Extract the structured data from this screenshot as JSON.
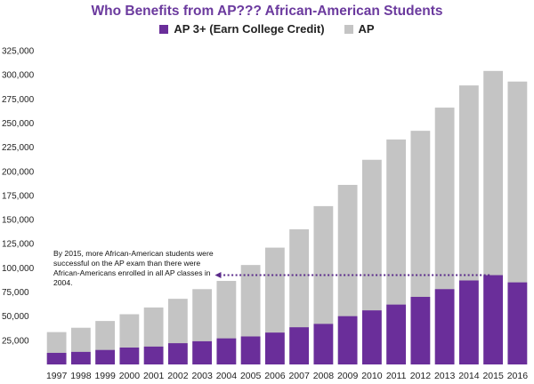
{
  "chart_data": {
    "type": "bar",
    "title": "Who Benefits from AP??? African-American Students",
    "categories": [
      "1997",
      "1998",
      "1999",
      "2000",
      "2001",
      "2002",
      "2003",
      "2004",
      "2005",
      "2006",
      "2007",
      "2008",
      "2009",
      "2010",
      "2011",
      "2012",
      "2013",
      "2014",
      "2015",
      "2016"
    ],
    "series": [
      {
        "name": "AP 3+ (Earn College Credit)",
        "color": "#6a2e9a",
        "values": [
          12000,
          13000,
          15000,
          17500,
          18500,
          22000,
          24000,
          27000,
          29000,
          33000,
          38500,
          42000,
          50000,
          56000,
          62000,
          70000,
          78000,
          87000,
          92500,
          85000
        ]
      },
      {
        "name": "AP",
        "color": "#c4c4c4",
        "values": [
          33500,
          38000,
          45000,
          52000,
          59000,
          68000,
          78000,
          86500,
          103000,
          121000,
          140000,
          164000,
          186000,
          212000,
          233000,
          242000,
          266000,
          289000,
          304000,
          293000
        ]
      }
    ],
    "ylim": [
      0,
      325000
    ],
    "yticks": [
      "25,000",
      "50,000",
      "75,000",
      "100,000",
      "125,000",
      "150,000",
      "175,000",
      "200,000",
      "225,000",
      "250,000",
      "275,000",
      "300,000",
      "325,000"
    ],
    "grid": false,
    "legend_position": "top",
    "annotation": "By 2015, more African-American students were successful on the AP exam than there were African-Americans enrolled in all AP classes in 2004."
  }
}
